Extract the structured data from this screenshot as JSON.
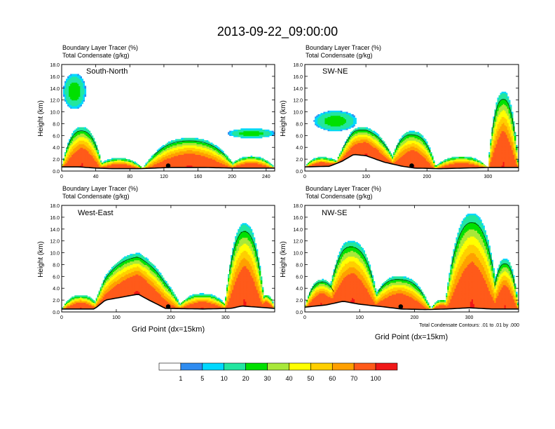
{
  "page_title": "2013-09-22_09:00:00",
  "field_label_1": "Boundary Layer Tracer   (%)",
  "field_label_2": "Total Condensate   (g/kg)",
  "ylabel": "Height (km)",
  "xlabel": "Grid Point (dx=15km)",
  "contour_note": "Total Condensate Contours: .01 to .01 by .000",
  "colorbar": {
    "colors": [
      "#ffffff",
      "#2f8cf0",
      "#00d8ff",
      "#22e6a0",
      "#00e000",
      "#a8e83a",
      "#ffff00",
      "#ffcf00",
      "#ffa000",
      "#ff5a1a",
      "#f01818"
    ],
    "labels": [
      "1",
      "5",
      "10",
      "20",
      "30",
      "40",
      "50",
      "60",
      "70",
      "100"
    ]
  },
  "chart_data": [
    {
      "type": "heatmap",
      "title": "South-North",
      "ylim": [
        0,
        18
      ],
      "yticks": [
        "0.0",
        "2.0",
        "4.0",
        "6.0",
        "8.0",
        "10.0",
        "12.0",
        "14.0",
        "16.0",
        "18.0"
      ],
      "xlim": [
        0,
        250
      ],
      "xticks": [
        0,
        40,
        80,
        120,
        160,
        200,
        240
      ],
      "marker_x": 125,
      "terrain": [
        [
          0,
          0.7
        ],
        [
          20,
          0.7
        ],
        [
          40,
          0.5
        ],
        [
          60,
          0.4
        ],
        [
          90,
          0.4
        ],
        [
          110,
          0.5
        ],
        [
          125,
          0.6
        ],
        [
          140,
          0.6
        ],
        [
          170,
          0.6
        ],
        [
          200,
          0.5
        ],
        [
          250,
          0.5
        ]
      ],
      "plumes": [
        {
          "x0": 0,
          "x1": 48,
          "top": 6.8,
          "core": 4.0
        },
        {
          "x0": 40,
          "x1": 95,
          "top": 1.8,
          "core": 1.4
        },
        {
          "x0": 95,
          "x1": 205,
          "top": 5.0,
          "core": 2.8
        },
        {
          "x0": 195,
          "x1": 250,
          "top": 2.0,
          "core": 1.3
        }
      ],
      "blobs": [
        {
          "x0": 2,
          "x1": 28,
          "y0": 10.5,
          "y1": 16.5
        },
        {
          "x0": 195,
          "x1": 250,
          "y0": 5.6,
          "y1": 7.2
        }
      ]
    },
    {
      "type": "heatmap",
      "title": "SW-NE",
      "ylim": [
        0,
        18
      ],
      "yticks": [
        "0.0",
        "2.0",
        "4.0",
        "6.0",
        "8.0",
        "10.0",
        "12.0",
        "14.0",
        "16.0",
        "18.0"
      ],
      "xlim": [
        0,
        350
      ],
      "xticks": [
        0,
        100,
        200,
        300
      ],
      "marker_x": 175,
      "terrain": [
        [
          0,
          0.7
        ],
        [
          40,
          0.8
        ],
        [
          60,
          1.6
        ],
        [
          80,
          2.8
        ],
        [
          100,
          2.6
        ],
        [
          130,
          1.5
        ],
        [
          160,
          0.8
        ],
        [
          180,
          0.5
        ],
        [
          220,
          0.4
        ],
        [
          260,
          0.5
        ],
        [
          300,
          0.6
        ],
        [
          350,
          0.6
        ]
      ],
      "plumes": [
        {
          "x0": 0,
          "x1": 55,
          "top": 1.6,
          "core": 1.0
        },
        {
          "x0": 50,
          "x1": 150,
          "top": 4.8,
          "core": 3.2
        },
        {
          "x0": 140,
          "x1": 215,
          "top": 6.2,
          "core": 3.3
        },
        {
          "x0": 210,
          "x1": 300,
          "top": 2.0,
          "core": 1.1
        },
        {
          "x0": 300,
          "x1": 350,
          "top": 12.8,
          "core": 9.0
        }
      ],
      "blobs": [
        {
          "x0": 15,
          "x1": 85,
          "y0": 6.8,
          "y1": 10.2
        }
      ]
    },
    {
      "type": "heatmap",
      "title": "West-East",
      "ylim": [
        0,
        18
      ],
      "yticks": [
        "0.0",
        "2.0",
        "4.0",
        "6.0",
        "8.0",
        "10.0",
        "12.0",
        "14.0",
        "16.0",
        "18.0"
      ],
      "xlim": [
        0,
        390
      ],
      "xticks": [
        0,
        100,
        200,
        300
      ],
      "marker_x": 195,
      "terrain": [
        [
          0,
          0.5
        ],
        [
          60,
          0.5
        ],
        [
          80,
          2.0
        ],
        [
          110,
          2.5
        ],
        [
          140,
          3.0
        ],
        [
          160,
          2.0
        ],
        [
          190,
          0.6
        ],
        [
          260,
          0.5
        ],
        [
          310,
          0.6
        ],
        [
          330,
          1.0
        ],
        [
          360,
          0.8
        ],
        [
          390,
          0.6
        ]
      ],
      "plumes": [
        {
          "x0": 0,
          "x1": 70,
          "top": 2.4,
          "core": 1.5
        },
        {
          "x0": 55,
          "x1": 220,
          "top": 7.0,
          "core": 4.0
        },
        {
          "x0": 210,
          "x1": 305,
          "top": 2.6,
          "core": 1.4
        },
        {
          "x0": 298,
          "x1": 372,
          "top": 14.0,
          "core": 11.5
        },
        {
          "x0": 360,
          "x1": 390,
          "top": 2.2,
          "core": 1.3
        }
      ],
      "blobs": []
    },
    {
      "type": "heatmap",
      "title": "NW-SE",
      "ylim": [
        0,
        18
      ],
      "yticks": [
        "0.0",
        "2.0",
        "4.0",
        "6.0",
        "8.0",
        "10.0",
        "12.0",
        "14.0",
        "16.0",
        "18.0"
      ],
      "xlim": [
        0,
        390
      ],
      "xticks": [
        0,
        100,
        200,
        300
      ],
      "marker_x": 175,
      "terrain": [
        [
          0,
          0.8
        ],
        [
          40,
          1.2
        ],
        [
          70,
          1.8
        ],
        [
          100,
          1.3
        ],
        [
          150,
          0.8
        ],
        [
          175,
          0.5
        ],
        [
          220,
          0.4
        ],
        [
          260,
          0.5
        ],
        [
          300,
          0.7
        ],
        [
          340,
          0.5
        ],
        [
          390,
          0.5
        ]
      ],
      "plumes": [
        {
          "x0": 0,
          "x1": 60,
          "top": 4.4,
          "core": 2.6
        },
        {
          "x0": 40,
          "x1": 135,
          "top": 10.5,
          "core": 6.0
        },
        {
          "x0": 120,
          "x1": 230,
          "top": 5.5,
          "core": 3.2
        },
        {
          "x0": 230,
          "x1": 270,
          "top": 1.6,
          "core": 1.0
        },
        {
          "x0": 255,
          "x1": 355,
          "top": 16.0,
          "core": 3.0
        },
        {
          "x0": 340,
          "x1": 390,
          "top": 8.5,
          "core": 1.5
        }
      ],
      "blobs": []
    }
  ]
}
